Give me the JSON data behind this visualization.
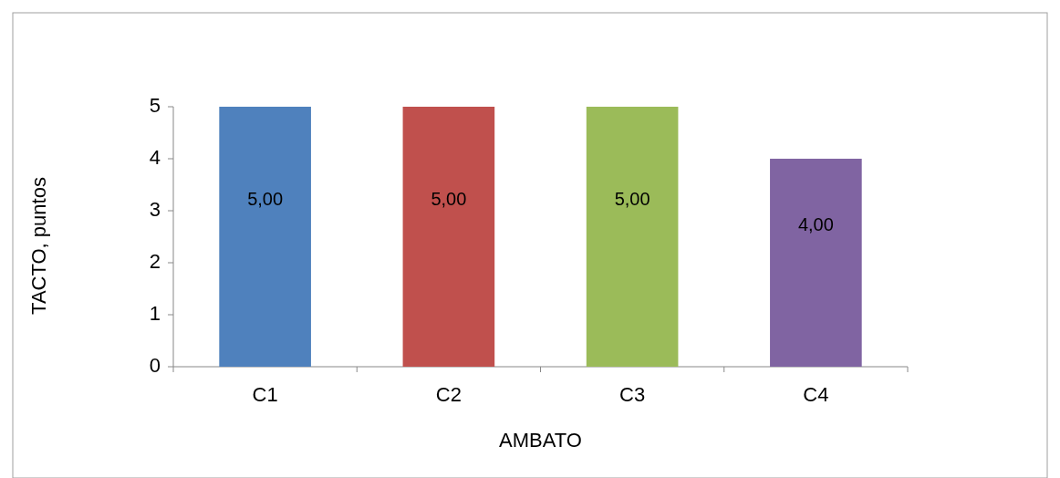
{
  "chart_data": {
    "type": "bar",
    "xlabel": "AMBATO",
    "ylabel": "TACTO, puntos",
    "categories": [
      "C1",
      "C2",
      "C3",
      "C4"
    ],
    "values": [
      5,
      5,
      5,
      4
    ],
    "value_labels": [
      "5,00",
      "5,00",
      "5,00",
      "4,00"
    ],
    "colors": [
      "#4f81bd",
      "#c0504d",
      "#9bbb59",
      "#8064a2"
    ],
    "ylim": [
      0,
      5
    ],
    "yticks": [
      0,
      1,
      2,
      3,
      4,
      5
    ],
    "grid": false
  }
}
